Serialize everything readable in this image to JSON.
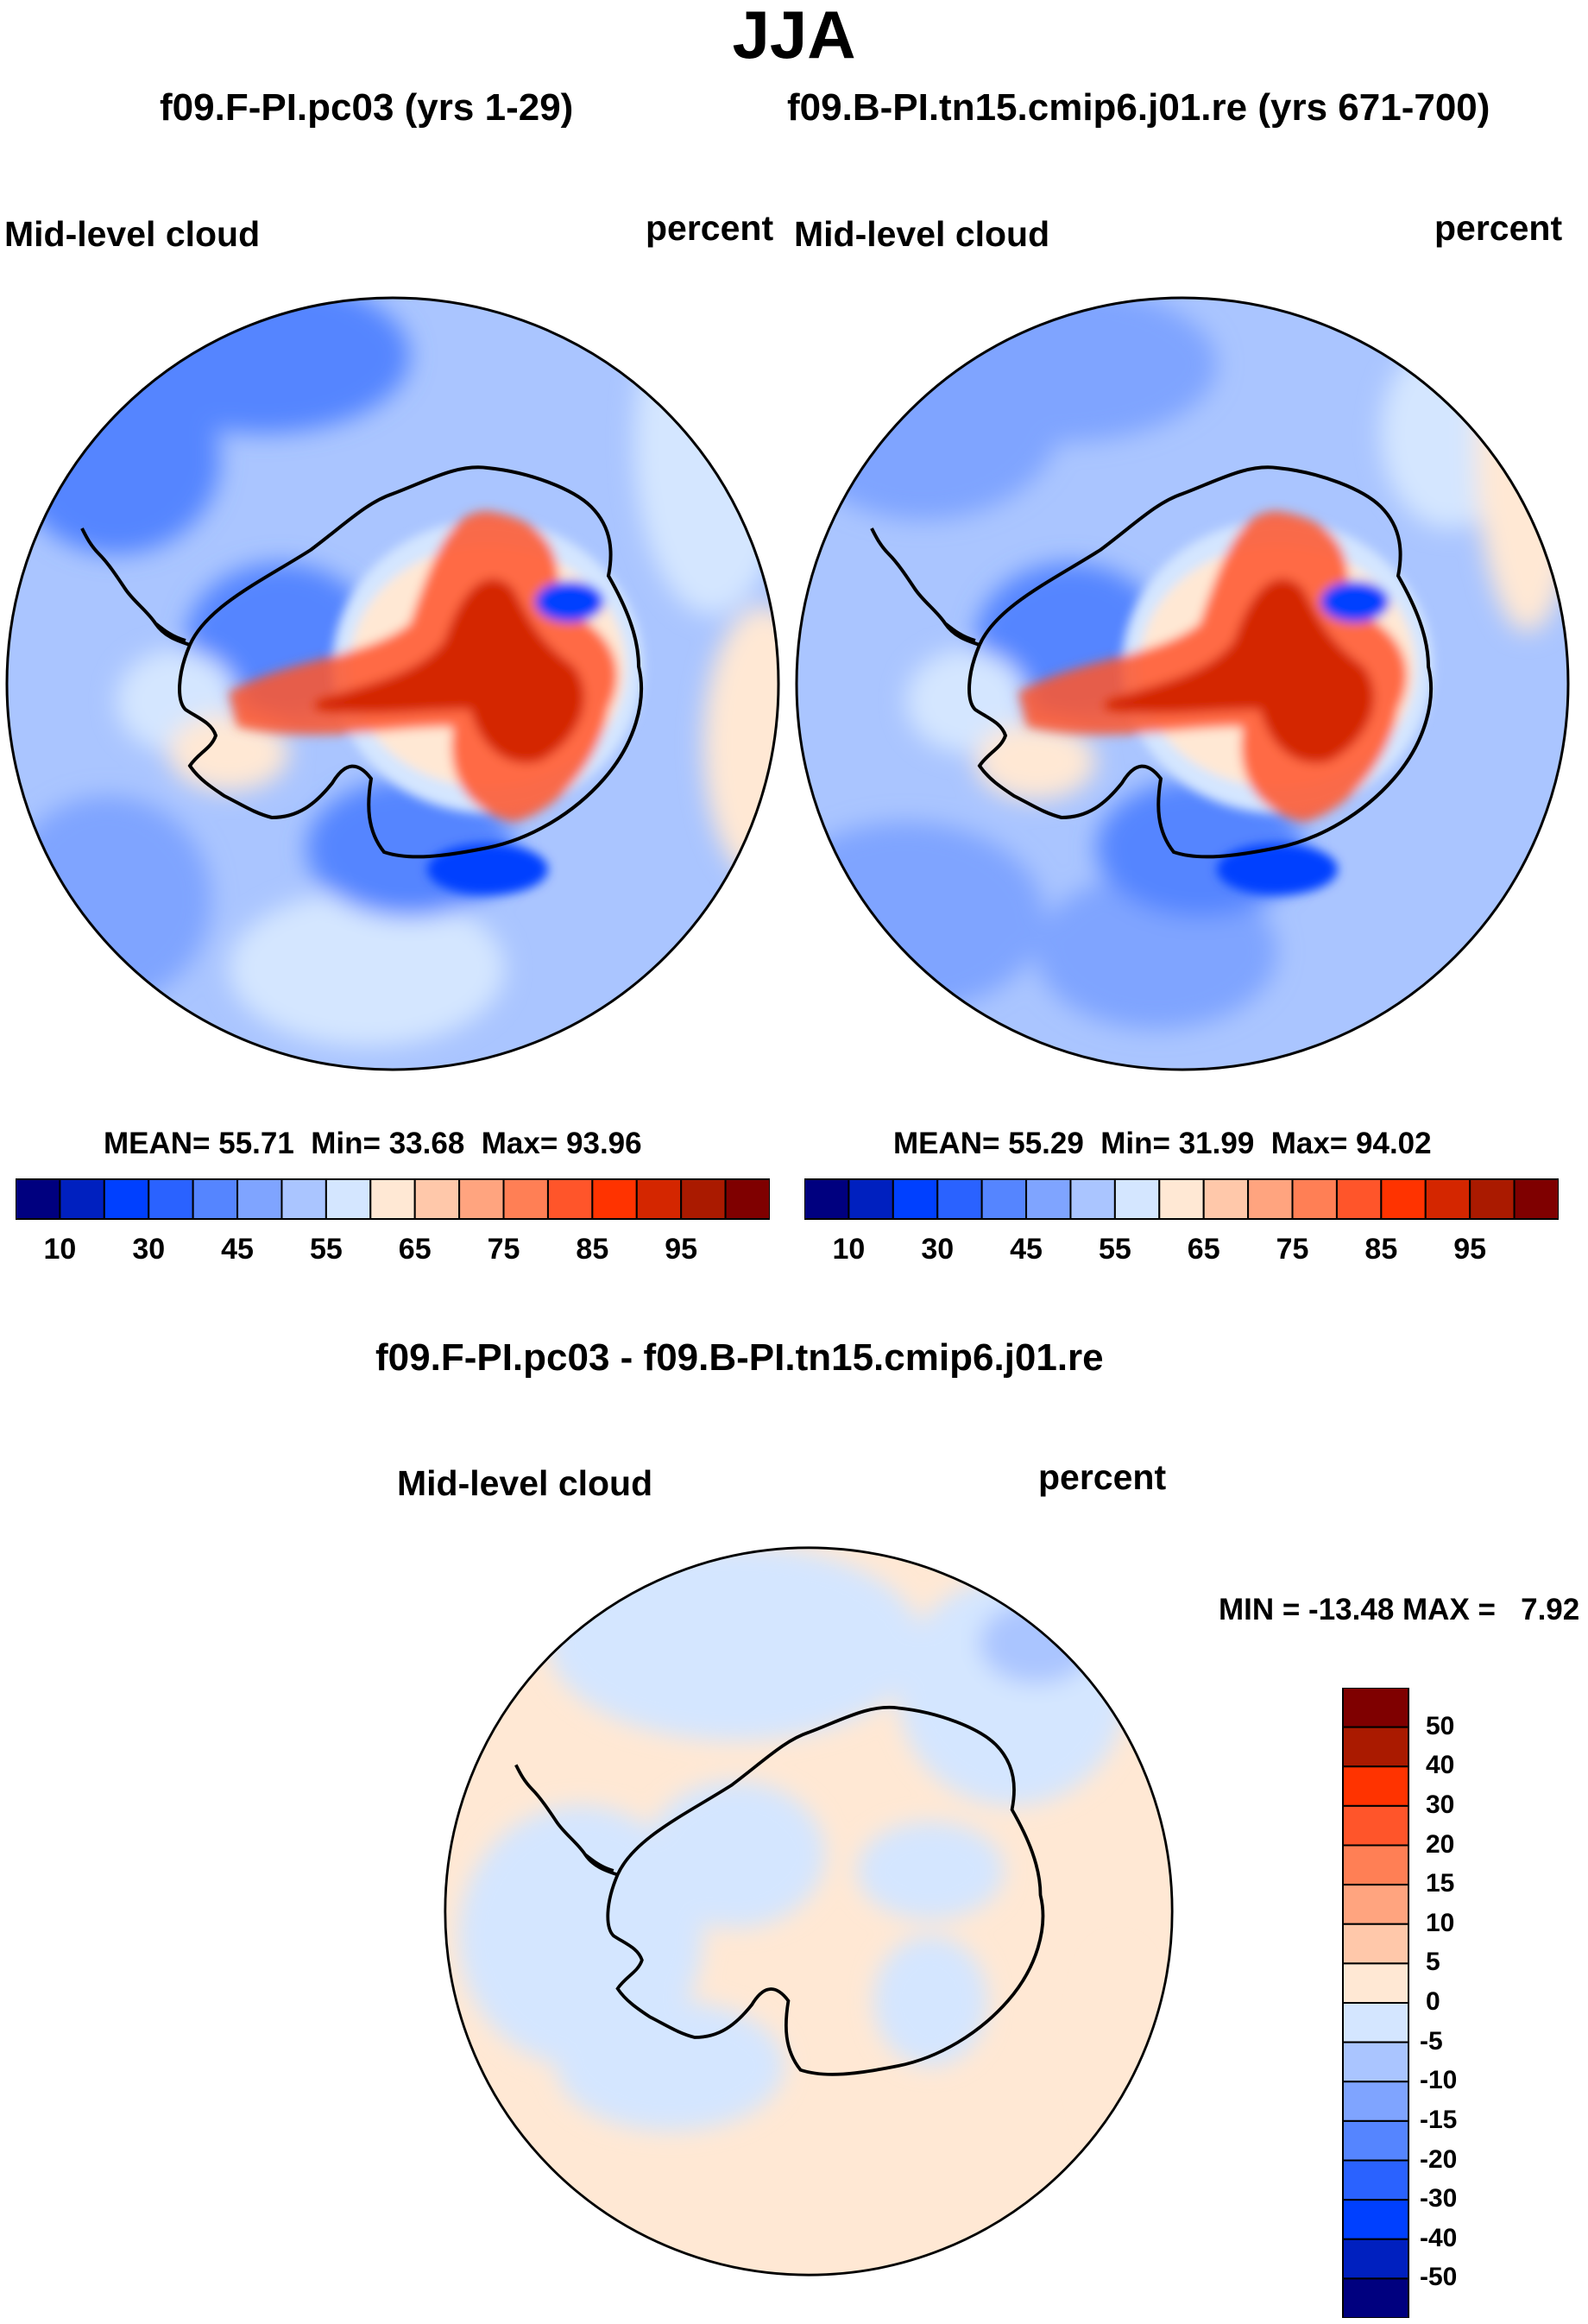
{
  "figure": {
    "title": "JJA",
    "panels": [
      {
        "case": "f09.F-PI.pc03 (yrs 1-29)",
        "variable": "Mid-level cloud",
        "units": "percent",
        "stats": {
          "mean_label": "MEAN=",
          "mean": "55.71",
          "min_label": "Min=",
          "min": "33.68",
          "max_label": "Max=",
          "max": "93.96"
        }
      },
      {
        "case": "f09.B-PI.tn15.cmip6.j01.re (yrs 671-700)",
        "variable": "Mid-level cloud",
        "units": "percent",
        "stats": {
          "mean_label": "MEAN=",
          "mean": "55.29",
          "min_label": "Min=",
          "min": "31.99",
          "max_label": "Max=",
          "max": "94.02"
        }
      },
      {
        "case": "f09.F-PI.pc03 - f09.B-PI.tn15.cmip6.j01.re",
        "variable": "Mid-level cloud",
        "units": "percent",
        "stats_text": "MIN = -13.48 MAX =   7.92"
      }
    ],
    "colorbar_abs": {
      "colors": [
        "#00007f",
        "#0020bf",
        "#0040ff",
        "#2a62ff",
        "#5585ff",
        "#7fa4ff",
        "#aac5ff",
        "#d4e6ff",
        "#ffe8d4",
        "#ffc8aa",
        "#ffa47f",
        "#ff7f55",
        "#ff552a",
        "#ff3300",
        "#d42600",
        "#aa1a00",
        "#7f0000"
      ],
      "tick_labels": [
        "10",
        "30",
        "45",
        "55",
        "65",
        "75",
        "85",
        "95"
      ]
    },
    "colorbar_diff": {
      "colors": [
        "#00007f",
        "#0020bf",
        "#0040ff",
        "#2a62ff",
        "#5585ff",
        "#7fa4ff",
        "#aac5ff",
        "#d4e6ff",
        "#ffe8d4",
        "#ffc8aa",
        "#ffa47f",
        "#ff7f55",
        "#ff552a",
        "#ff3300",
        "#aa1a00",
        "#7f0000"
      ],
      "tick_labels": [
        "50",
        "40",
        "30",
        "20",
        "15",
        "10",
        "5",
        "0",
        "-5",
        "-10",
        "-15",
        "-20",
        "-30",
        "-40",
        "-50"
      ]
    },
    "field_colors": {
      "ocean_abs": "#aac5ff",
      "ocean_abs_dark": "#7fa4ff",
      "ocean_abs_darker": "#5585ff",
      "ocean_light": "#d4e6ff",
      "warm_light": "#ffe8d4",
      "interior_core": "#ff552a",
      "interior_peak": "#d42600",
      "coast_blue": "#0040ff",
      "diff_background": "#ffe8d4",
      "diff_neg": "#d4e6ff",
      "diff_neg2": "#aac5ff"
    }
  }
}
